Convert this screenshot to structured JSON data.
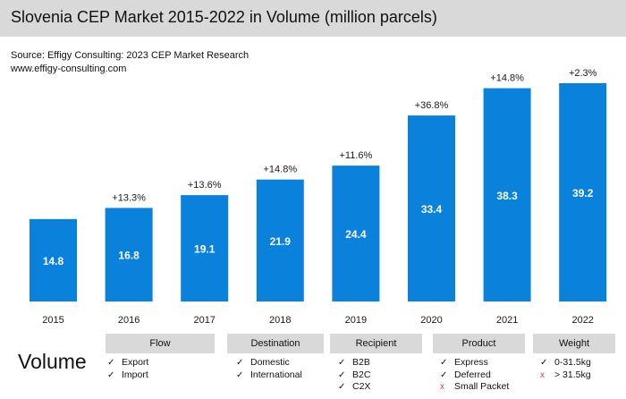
{
  "title": "Slovenia CEP Market 2015-2022 in Volume (million parcels)",
  "source_lines": [
    "Source: Effigy Consulting: 2023 CEP Market Research",
    "www.effigy-consulting.com"
  ],
  "colors": {
    "bar": "#0a82dc",
    "title_bg": "#d9d9d9",
    "cross": "#e53935"
  },
  "chart_data": {
    "type": "bar",
    "title": "Slovenia CEP Market 2015-2022 in Volume (million parcels)",
    "categories": [
      "2015",
      "2016",
      "2017",
      "2018",
      "2019",
      "2020",
      "2021",
      "2022"
    ],
    "values": [
      14.8,
      16.8,
      19.1,
      21.9,
      24.4,
      33.4,
      38.3,
      39.2
    ],
    "value_labels": [
      "14.8",
      "16.8",
      "19.1",
      "21.9",
      "24.4",
      "33.4",
      "38.3",
      "39.2"
    ],
    "growth_labels": [
      "",
      "+13.3%",
      "+13.6%",
      "+14.8%",
      "+11.6%",
      "+36.8%",
      "+14.8%",
      "+2.3%"
    ],
    "xlabel": "",
    "ylabel": "",
    "ylim": [
      0,
      39.2
    ],
    "grid": false
  },
  "segmentation": {
    "label": "Volume",
    "categories": [
      {
        "name": "Flow",
        "items": [
          {
            "text": "Export",
            "included": true
          },
          {
            "text": "Import",
            "included": true
          }
        ]
      },
      {
        "name": "Destination",
        "items": [
          {
            "text": "Domestic",
            "included": true
          },
          {
            "text": "International",
            "included": true
          }
        ]
      },
      {
        "name": "Recipient",
        "items": [
          {
            "text": "B2B",
            "included": true
          },
          {
            "text": "B2C",
            "included": true
          },
          {
            "text": "C2X",
            "included": true
          }
        ]
      },
      {
        "name": "Product",
        "items": [
          {
            "text": "Express",
            "included": true
          },
          {
            "text": "Deferred",
            "included": true
          },
          {
            "text": "Small Packet",
            "included": false
          }
        ]
      },
      {
        "name": "Weight",
        "items": [
          {
            "text": "0-31.5kg",
            "included": true
          },
          {
            "text": "> 31.5kg",
            "included": false
          }
        ]
      }
    ],
    "check_mark": "✓",
    "cross_mark": "x"
  }
}
